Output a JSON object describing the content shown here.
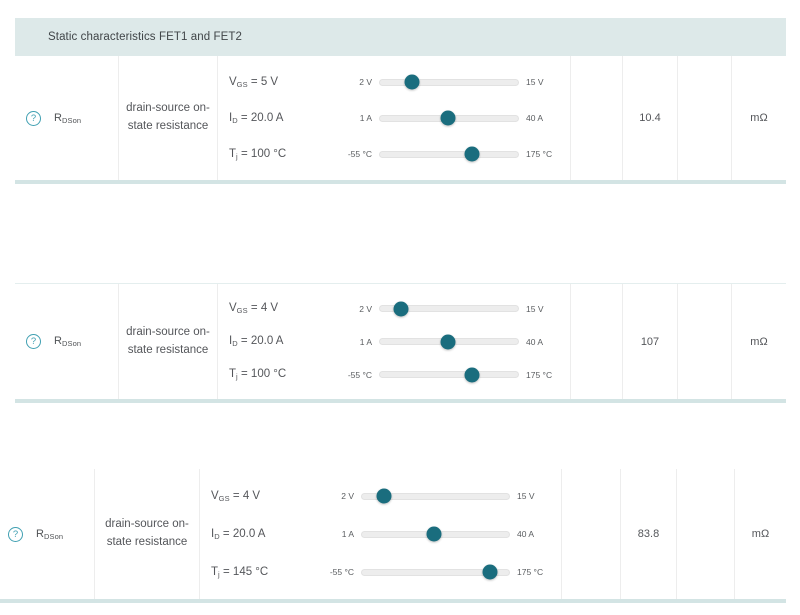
{
  "tables": [
    {
      "header": "Static characteristics FET1 and FET2",
      "row": {
        "help_glyph": "?",
        "symbol_base": "R",
        "symbol_sub": "DSon",
        "description": "drain-source on-state resistance",
        "conditions": [
          {
            "sym": "V",
            "sub": "GS",
            "rest": " = 5 V",
            "min": "2 V",
            "max": "15 V",
            "knob_left": "23%"
          },
          {
            "sym": "I",
            "sub": "D",
            "rest": " = 20.0 A",
            "min": "1 A",
            "max": "40 A",
            "knob_left": "49%"
          },
          {
            "sym": "T",
            "sub": "j",
            "rest": " = 100 °C",
            "min": "-55 °C",
            "max": "175 °C",
            "knob_left": "67%"
          }
        ],
        "min_value": "",
        "typ_value": "10.4",
        "max_value": "",
        "unit": "mΩ"
      }
    },
    {
      "header": "",
      "row": {
        "help_glyph": "?",
        "symbol_base": "R",
        "symbol_sub": "DSon",
        "description": "drain-source on-state resistance",
        "conditions": [
          {
            "sym": "V",
            "sub": "GS",
            "rest": " = 4 V",
            "min": "2 V",
            "max": "15 V",
            "knob_left": "15%"
          },
          {
            "sym": "I",
            "sub": "D",
            "rest": " = 20.0 A",
            "min": "1 A",
            "max": "40 A",
            "knob_left": "49%"
          },
          {
            "sym": "T",
            "sub": "j",
            "rest": " = 100 °C",
            "min": "-55 °C",
            "max": "175 °C",
            "knob_left": "67%"
          }
        ],
        "min_value": "",
        "typ_value": "107",
        "max_value": "",
        "unit": "mΩ"
      }
    },
    {
      "header": "",
      "row": {
        "help_glyph": "?",
        "symbol_base": "R",
        "symbol_sub": "DSon",
        "description": "drain-source on-state resistance",
        "conditions": [
          {
            "sym": "V",
            "sub": "GS",
            "rest": " = 4 V",
            "min": "2 V",
            "max": "15 V",
            "knob_left": "15%"
          },
          {
            "sym": "I",
            "sub": "D",
            "rest": " = 20.0 A",
            "min": "1 A",
            "max": "40 A",
            "knob_left": "49%"
          },
          {
            "sym": "T",
            "sub": "j",
            "rest": " = 145 °C",
            "min": "-55 °C",
            "max": "175 °C",
            "knob_left": "87%"
          }
        ],
        "min_value": "",
        "typ_value": "83.8",
        "max_value": "",
        "unit": "mΩ"
      }
    }
  ],
  "colors": {
    "accent_teal": "#1a6d7e",
    "icon_teal": "#41a0b2",
    "header_bg": "#dde9e9",
    "divider_band": "#d3e4e4"
  }
}
